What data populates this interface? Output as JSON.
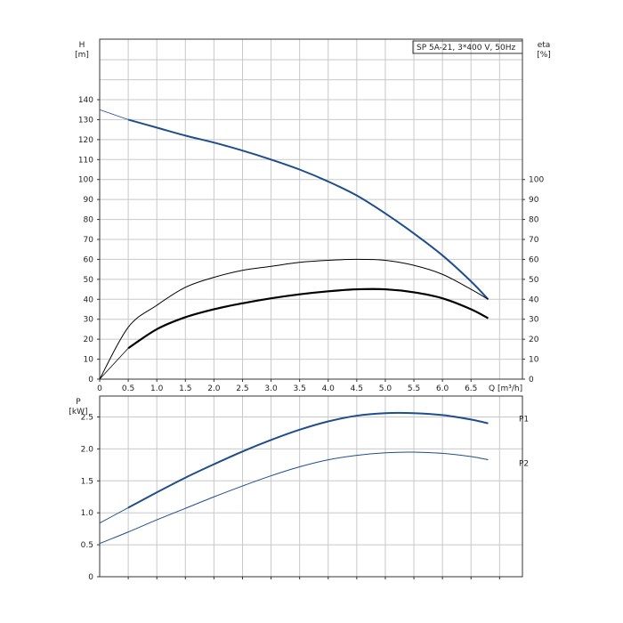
{
  "chart_data": [
    {
      "type": "line",
      "title": "SP 5A-21, 3*400 V, 50Hz",
      "xlabel": "Q [m³/h]",
      "ylabel": "H",
      "ylabel_unit": "[m]",
      "y2label": "eta",
      "y2label_unit": "[%]",
      "xlim": [
        0,
        7.4
      ],
      "ylim": [
        0,
        140
      ],
      "y2lim": [
        0,
        100
      ],
      "x_ticks": [
        "0",
        "0.5",
        "1.0",
        "1.5",
        "2.0",
        "2.5",
        "3.0",
        "3.5",
        "4.0",
        "4.5",
        "5.0",
        "5.5",
        "6.0",
        "6.5"
      ],
      "y_ticks": [
        "0",
        "10",
        "20",
        "30",
        "40",
        "50",
        "60",
        "70",
        "80",
        "90",
        "100",
        "110",
        "120",
        "130",
        "140"
      ],
      "y2_ticks": [
        "0",
        "10",
        "20",
        "30",
        "40",
        "50",
        "60",
        "70",
        "80",
        "90",
        "100"
      ],
      "grid": true,
      "series": [
        {
          "role": "head",
          "color": "#1f4e8c",
          "x": [
            0,
            0.5,
            1.0,
            1.5,
            2.0,
            2.5,
            3.0,
            3.5,
            4.0,
            4.5,
            5.0,
            5.5,
            6.0,
            6.5,
            6.8
          ],
          "values": [
            135,
            130,
            126,
            122,
            118.5,
            114.5,
            110,
            105,
            99,
            92,
            83,
            73,
            62,
            49,
            40
          ]
        },
        {
          "role": "efficiency_overall",
          "color": "#000000",
          "x": [
            0,
            0.5,
            1.0,
            1.5,
            2.0,
            2.5,
            3.0,
            3.5,
            4.0,
            4.5,
            5.0,
            5.5,
            6.0,
            6.5,
            6.8
          ],
          "values": [
            0,
            15.5,
            25,
            31,
            35,
            38,
            40.5,
            42.5,
            44,
            45,
            45,
            43.5,
            40.5,
            35,
            30.5
          ]
        },
        {
          "role": "efficiency_pump",
          "color": "#000000",
          "x": [
            0,
            0.5,
            1.0,
            1.5,
            2.0,
            2.5,
            3.0,
            3.5,
            4.0,
            4.5,
            5.0,
            5.5,
            6.0,
            6.5,
            6.8
          ],
          "values": [
            0,
            26,
            37,
            46,
            51,
            54.5,
            56.5,
            58.5,
            59.5,
            60,
            59.5,
            57,
            52.5,
            45,
            40
          ]
        }
      ]
    },
    {
      "type": "line",
      "ylabel": "P",
      "ylabel_unit": "[kW]",
      "xlim": [
        0,
        7.4
      ],
      "ylim": [
        0,
        3.3
      ],
      "y_ticks": [
        "0",
        "0.5",
        "1.0",
        "1.5",
        "2.0",
        "2.5"
      ],
      "grid": true,
      "series": [
        {
          "name": "P1",
          "color": "#1f4e8c",
          "x": [
            0.5,
            1.0,
            1.5,
            2.0,
            2.5,
            3.0,
            3.5,
            4.0,
            4.5,
            5.0,
            5.5,
            6.0,
            6.5,
            6.8
          ],
          "values": [
            1.08,
            1.32,
            1.55,
            1.76,
            1.96,
            2.14,
            2.3,
            2.43,
            2.52,
            2.56,
            2.56,
            2.53,
            2.46,
            2.4
          ]
        },
        {
          "name": "P2",
          "color": "#1f4e8c",
          "x": [
            0,
            0.5,
            1.0,
            1.5,
            2.0,
            2.5,
            3.0,
            3.5,
            4.0,
            4.5,
            5.0,
            5.5,
            6.0,
            6.5,
            6.8
          ],
          "values": [
            0.52,
            0.7,
            0.89,
            1.07,
            1.25,
            1.42,
            1.58,
            1.72,
            1.83,
            1.9,
            1.94,
            1.95,
            1.93,
            1.88,
            1.83
          ]
        }
      ]
    }
  ]
}
